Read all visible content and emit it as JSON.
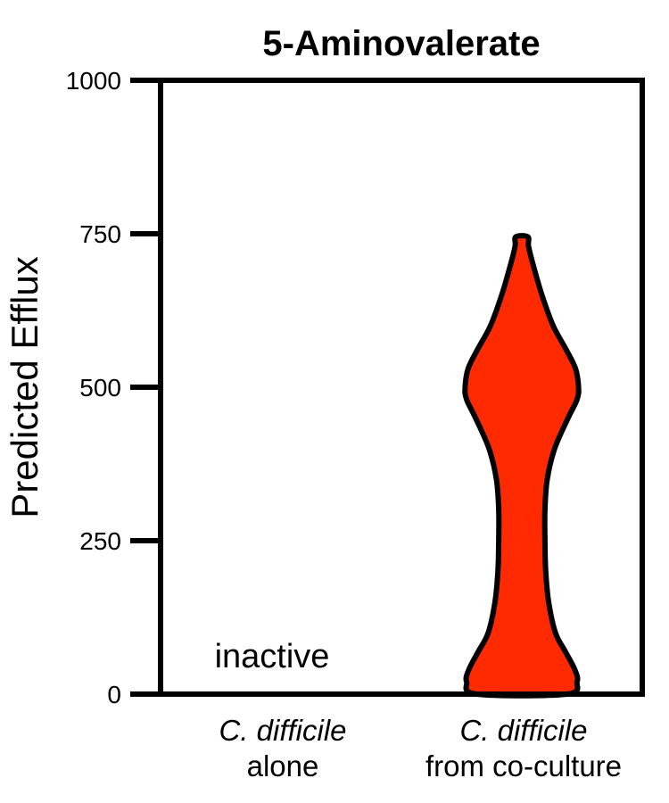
{
  "chart_data": {
    "type": "violin",
    "title": "5-Aminovalerate",
    "ylabel": "Predicted Efflux",
    "xlabel": "",
    "ylim": [
      0,
      1000
    ],
    "yticks": [
      0,
      250,
      500,
      750,
      1000
    ],
    "ytick_labels": [
      "0",
      "250",
      "500",
      "750",
      "1000"
    ],
    "grid": false,
    "categories": [
      {
        "line1": "C. difficile",
        "line2": "alone"
      },
      {
        "line1": "C. difficile",
        "line2": "from co-culture"
      }
    ],
    "violins": [
      {
        "category_index": 0,
        "active": false,
        "annotation": "inactive"
      },
      {
        "category_index": 1,
        "active": true,
        "color": "#FF2A00",
        "min": 0,
        "max": 745,
        "profile": [
          [
            0,
            0.6
          ],
          [
            20,
            0.74
          ],
          [
            40,
            0.71
          ],
          [
            70,
            0.58
          ],
          [
            100,
            0.45
          ],
          [
            150,
            0.36
          ],
          [
            200,
            0.32
          ],
          [
            250,
            0.31
          ],
          [
            300,
            0.31
          ],
          [
            350,
            0.34
          ],
          [
            400,
            0.44
          ],
          [
            450,
            0.62
          ],
          [
            480,
            0.74
          ],
          [
            500,
            0.76
          ],
          [
            530,
            0.72
          ],
          [
            560,
            0.6
          ],
          [
            600,
            0.42
          ],
          [
            650,
            0.27
          ],
          [
            700,
            0.15
          ],
          [
            730,
            0.09
          ],
          [
            745,
            0.08
          ]
        ]
      }
    ]
  }
}
